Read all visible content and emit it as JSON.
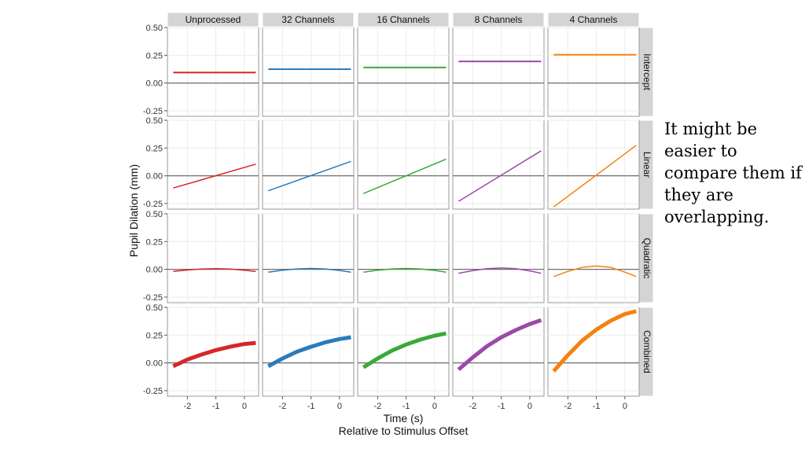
{
  "note_text": "It might be easier to compare them if they are overlapping.",
  "chart_data": {
    "type": "line",
    "xlabel": "Time (s)",
    "xlabel_sub": "Relative to Stimulus Offset",
    "ylabel": "Pupil Dilation (mm)",
    "xlim": [
      -2.7,
      0.5
    ],
    "ylim": [
      -0.3,
      0.5
    ],
    "x_ticks": [
      -2,
      -1,
      0
    ],
    "y_ticks": [
      -0.25,
      0.0,
      0.25,
      0.5
    ],
    "y_tick_labels": [
      "-0.25",
      "0.00",
      "0.25",
      "0.50"
    ],
    "columns": [
      "Unprocessed",
      "32 Channels",
      "16 Channels",
      "8 Channels",
      "4 Channels"
    ],
    "rows": [
      "Intercept",
      "Linear",
      "Quadratic",
      "Combined"
    ],
    "colors": [
      "#d62728",
      "#2b7bba",
      "#3aa93a",
      "#9b4aa8",
      "#f5820d"
    ],
    "line_widths": {
      "Intercept": 2,
      "Linear": 1.5,
      "Quadratic": 1.5,
      "Combined": 5
    },
    "panels": {
      "Intercept": [
        {
          "x": [
            -2.5,
            0.4
          ],
          "y": [
            0.095,
            0.095
          ]
        },
        {
          "x": [
            -2.5,
            0.4
          ],
          "y": [
            0.125,
            0.125
          ]
        },
        {
          "x": [
            -2.5,
            0.4
          ],
          "y": [
            0.14,
            0.14
          ]
        },
        {
          "x": [
            -2.5,
            0.4
          ],
          "y": [
            0.195,
            0.195
          ]
        },
        {
          "x": [
            -2.5,
            0.4
          ],
          "y": [
            0.255,
            0.255
          ]
        }
      ],
      "Linear": [
        {
          "x": [
            -2.5,
            0.4
          ],
          "y": [
            -0.11,
            0.105
          ]
        },
        {
          "x": [
            -2.5,
            0.4
          ],
          "y": [
            -0.135,
            0.13
          ]
        },
        {
          "x": [
            -2.5,
            0.4
          ],
          "y": [
            -0.16,
            0.15
          ]
        },
        {
          "x": [
            -2.5,
            0.4
          ],
          "y": [
            -0.23,
            0.225
          ]
        },
        {
          "x": [
            -2.5,
            0.4
          ],
          "y": [
            -0.28,
            0.275
          ]
        }
      ],
      "Quadratic": [
        {
          "x": [
            -2.5,
            -2.0,
            -1.5,
            -1.0,
            -0.5,
            0.0,
            0.4
          ],
          "y": [
            -0.018,
            -0.006,
            0.003,
            0.006,
            0.003,
            -0.008,
            -0.02
          ]
        },
        {
          "x": [
            -2.5,
            -2.0,
            -1.5,
            -1.0,
            -0.5,
            0.0,
            0.4
          ],
          "y": [
            -0.025,
            -0.008,
            0.004,
            0.008,
            0.004,
            -0.01,
            -0.025
          ]
        },
        {
          "x": [
            -2.5,
            -2.0,
            -1.5,
            -1.0,
            -0.5,
            0.0,
            0.4
          ],
          "y": [
            -0.025,
            -0.008,
            0.004,
            0.008,
            0.004,
            -0.01,
            -0.025
          ]
        },
        {
          "x": [
            -2.5,
            -2.0,
            -1.5,
            -1.0,
            -0.5,
            0.0,
            0.4
          ],
          "y": [
            -0.035,
            -0.012,
            0.006,
            0.012,
            0.006,
            -0.014,
            -0.035
          ]
        },
        {
          "x": [
            -2.5,
            -2.0,
            -1.5,
            -1.0,
            -0.5,
            0.0,
            0.4
          ],
          "y": [
            -0.065,
            -0.018,
            0.018,
            0.03,
            0.018,
            -0.025,
            -0.065
          ]
        }
      ],
      "Combined": [
        {
          "x": [
            -2.5,
            -2.0,
            -1.5,
            -1.0,
            -0.5,
            0.0,
            0.4
          ],
          "y": [
            -0.03,
            0.03,
            0.075,
            0.115,
            0.145,
            0.17,
            0.18
          ]
        },
        {
          "x": [
            -2.5,
            -2.0,
            -1.5,
            -1.0,
            -0.5,
            0.0,
            0.4
          ],
          "y": [
            -0.03,
            0.04,
            0.1,
            0.145,
            0.185,
            0.215,
            0.23
          ]
        },
        {
          "x": [
            -2.5,
            -2.0,
            -1.5,
            -1.0,
            -0.5,
            0.0,
            0.4
          ],
          "y": [
            -0.04,
            0.04,
            0.11,
            0.165,
            0.21,
            0.245,
            0.265
          ]
        },
        {
          "x": [
            -2.5,
            -2.0,
            -1.5,
            -1.0,
            -0.5,
            0.0,
            0.4
          ],
          "y": [
            -0.06,
            0.05,
            0.15,
            0.23,
            0.295,
            0.35,
            0.385
          ]
        },
        {
          "x": [
            -2.5,
            -2.0,
            -1.5,
            -1.0,
            -0.5,
            0.0,
            0.4
          ],
          "y": [
            -0.075,
            0.07,
            0.2,
            0.3,
            0.38,
            0.44,
            0.465
          ]
        }
      ]
    }
  }
}
